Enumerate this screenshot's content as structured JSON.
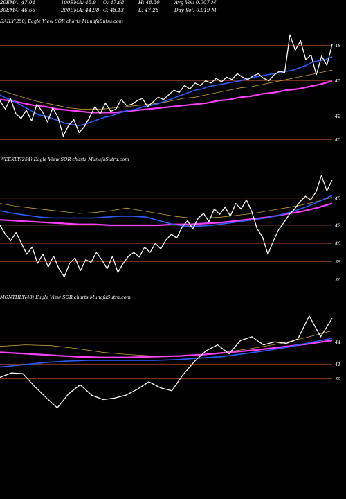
{
  "header": {
    "row1": [
      "20EMA: 47.04",
      "100EMA: 45.9",
      "O: 47.68",
      "H: 48.30",
      "Avg Vol: 0.007 M"
    ],
    "row2": [
      "30EMA: 46.66",
      "200EMA: 44.98",
      "C: 48.13",
      "L: 47.28",
      "Day Vol: 0.019 M"
    ]
  },
  "colors": {
    "background": "#000000",
    "price": "#ffffff",
    "ema_blue": "#2f5bff",
    "ema_magenta": "#ff40ff",
    "ema_gold": "#c8a040",
    "ema_grey": "#bbbbbb",
    "level_lines": "#a04020"
  },
  "chart_data": [
    {
      "type": "line",
      "title": "DAILY(250) Eagle  View  SOR charts MunafaSutra.com",
      "yticks": [
        48,
        45,
        42,
        40
      ],
      "levels": [
        48,
        45,
        42,
        40
      ],
      "ylim": [
        39.5,
        49.5
      ],
      "series": [
        {
          "name": "",
          "role": "price",
          "values": [
            43.3,
            42.6,
            43.5,
            42.2,
            41.8,
            42.5,
            41.6,
            43.0,
            42.4,
            41.5,
            42.7,
            41.9,
            40.3,
            41.2,
            41.7,
            40.6,
            41.1,
            41.9,
            42.8,
            42.2,
            43.1,
            42.4,
            42.6,
            43.4,
            42.9,
            43.0,
            43.3,
            43.5,
            42.8,
            43.2,
            43.6,
            43.4,
            43.8,
            44.2,
            44.0,
            44.6,
            44.3,
            44.8,
            44.6,
            45.0,
            44.8,
            45.2,
            44.9,
            45.3,
            45.1,
            45.6,
            45.3,
            45.1,
            45.4,
            45.6,
            45.2,
            45.0,
            45.5,
            45.8,
            45.7,
            48.9,
            47.6,
            48.4,
            46.8,
            47.2,
            45.5,
            47.1,
            46.3,
            48.1
          ]
        },
        {
          "name": "",
          "role": "ema_blue",
          "values": [
            43.8,
            43.5,
            43.3,
            43.0,
            42.7,
            42.4,
            42.1,
            42.0,
            41.8,
            41.6,
            41.4,
            41.3,
            41.2,
            41.3,
            41.5,
            41.7,
            41.9,
            42.0,
            42.2,
            42.4,
            42.5,
            42.6,
            42.8,
            42.9,
            43.0,
            43.2,
            43.4,
            43.6,
            43.8,
            44.0,
            44.2,
            44.3,
            44.5,
            44.6,
            44.7,
            44.8,
            44.9,
            45.0,
            45.2,
            45.3,
            45.4,
            45.5,
            45.6,
            45.7,
            45.8,
            45.9,
            46.1,
            46.3,
            46.6,
            46.7,
            46.8,
            47.04
          ]
        },
        {
          "name": "",
          "role": "ema_magenta",
          "values": [
            43.4,
            43.3,
            43.1,
            42.9,
            42.8,
            42.6,
            42.5,
            42.4,
            42.3,
            42.3,
            42.3,
            42.4,
            42.5,
            42.6,
            42.7,
            42.8,
            42.9,
            43.0,
            43.1,
            43.3,
            43.4,
            43.6,
            43.7,
            43.9,
            44.0,
            44.2,
            44.3,
            44.5,
            44.7,
            44.98
          ]
        },
        {
          "name": "",
          "role": "ema_gold",
          "values": [
            44.2,
            43.9,
            43.6,
            43.3,
            43.1,
            42.9,
            42.7,
            42.6,
            42.6,
            42.6,
            42.7,
            42.8,
            42.9,
            43.0,
            43.1,
            43.3,
            43.5,
            43.6,
            43.8,
            44.0,
            44.2,
            44.4,
            44.5,
            44.7,
            44.9,
            45.1,
            45.3,
            45.5,
            45.7,
            45.9
          ]
        }
      ]
    },
    {
      "type": "line",
      "title": "WEEKLY(254) Eagle  View  SOR charts MunafaSutra.com",
      "yticks": [
        45,
        42,
        40,
        38,
        36
      ],
      "levels": [
        45,
        42,
        40,
        38
      ],
      "ylim": [
        35.5,
        48.5
      ],
      "series": [
        {
          "name": "",
          "role": "price",
          "values": [
            42.0,
            41.0,
            40.3,
            41.2,
            40.0,
            38.8,
            39.6,
            37.8,
            38.8,
            37.4,
            38.6,
            37.2,
            36.3,
            37.8,
            38.4,
            37.0,
            38.2,
            37.9,
            39.0,
            38.2,
            37.2,
            38.6,
            36.8,
            37.8,
            38.6,
            39.0,
            38.5,
            39.6,
            39.0,
            40.0,
            39.4,
            40.4,
            41.0,
            40.6,
            41.8,
            42.5,
            41.6,
            42.8,
            43.3,
            42.4,
            43.8,
            43.2,
            44.0,
            43.0,
            44.4,
            43.8,
            44.8,
            43.5,
            41.6,
            40.7,
            38.8,
            40.2,
            41.5,
            42.3,
            43.2,
            43.8,
            44.6,
            45.2,
            44.8,
            45.7,
            47.5,
            45.8,
            47.0
          ]
        },
        {
          "name": "",
          "role": "ema_blue",
          "values": [
            43.6,
            43.3,
            43.1,
            42.9,
            42.8,
            42.8,
            42.8,
            42.8,
            42.9,
            43.0,
            43.0,
            42.9,
            42.5,
            42.1,
            41.9,
            41.9,
            42.0,
            42.2,
            42.4,
            42.6,
            42.8,
            43.1,
            43.5,
            44.0,
            44.6,
            45.3
          ]
        },
        {
          "name": "",
          "role": "ema_magenta",
          "values": [
            42.6,
            42.5,
            42.4,
            42.3,
            42.2,
            42.1,
            42.1,
            42.0,
            42.0,
            42.0,
            42.0,
            42.1,
            42.1,
            42.2,
            42.3,
            42.5,
            42.7,
            42.9,
            43.2,
            43.5,
            43.9,
            44.4
          ]
        },
        {
          "name": "",
          "role": "ema_gold",
          "values": [
            44.4,
            44.1,
            43.9,
            43.7,
            43.5,
            43.3,
            43.4,
            43.6,
            43.9,
            43.6,
            43.3,
            43.0,
            42.8,
            42.8,
            42.9,
            43.1,
            43.3,
            43.6,
            43.9,
            44.2,
            44.6,
            45.1
          ]
        }
      ]
    },
    {
      "type": "line",
      "title": "MONTHLY(48) Eagle  View  SOR charts MunafaSutra.com",
      "yticks": [
        44,
        41,
        39
      ],
      "levels": [
        44,
        41,
        39
      ],
      "ylim": [
        34.0,
        49.0
      ],
      "series": [
        {
          "name": "",
          "role": "price",
          "values": [
            39.2,
            39.8,
            39.7,
            38.0,
            36.5,
            35.1,
            37.0,
            38.2,
            36.8,
            36.2,
            36.4,
            36.8,
            37.6,
            38.6,
            37.8,
            37.4,
            39.6,
            41.4,
            42.8,
            43.6,
            42.4,
            44.2,
            44.7,
            43.6,
            44.0,
            43.8,
            44.4,
            47.5,
            44.7,
            47.2
          ]
        },
        {
          "name": "",
          "role": "ema_blue",
          "values": [
            40.6,
            40.9,
            41.2,
            41.4,
            41.5,
            41.5,
            41.5,
            41.5,
            41.6,
            41.8,
            42.0,
            42.4,
            42.8,
            43.3,
            43.9,
            44.5
          ]
        },
        {
          "name": "",
          "role": "ema_magenta",
          "values": [
            42.6,
            42.4,
            42.2,
            42.0,
            41.9,
            41.9,
            42.0,
            42.1,
            42.3,
            42.6,
            42.9,
            43.3,
            43.7,
            44.2
          ]
        },
        {
          "name": "",
          "role": "ema_gold",
          "values": [
            43.4,
            43.6,
            43.5,
            43.1,
            42.6,
            42.3,
            42.1,
            42.1,
            42.3,
            42.7,
            43.2,
            43.8,
            44.6,
            45.5
          ]
        }
      ]
    }
  ]
}
